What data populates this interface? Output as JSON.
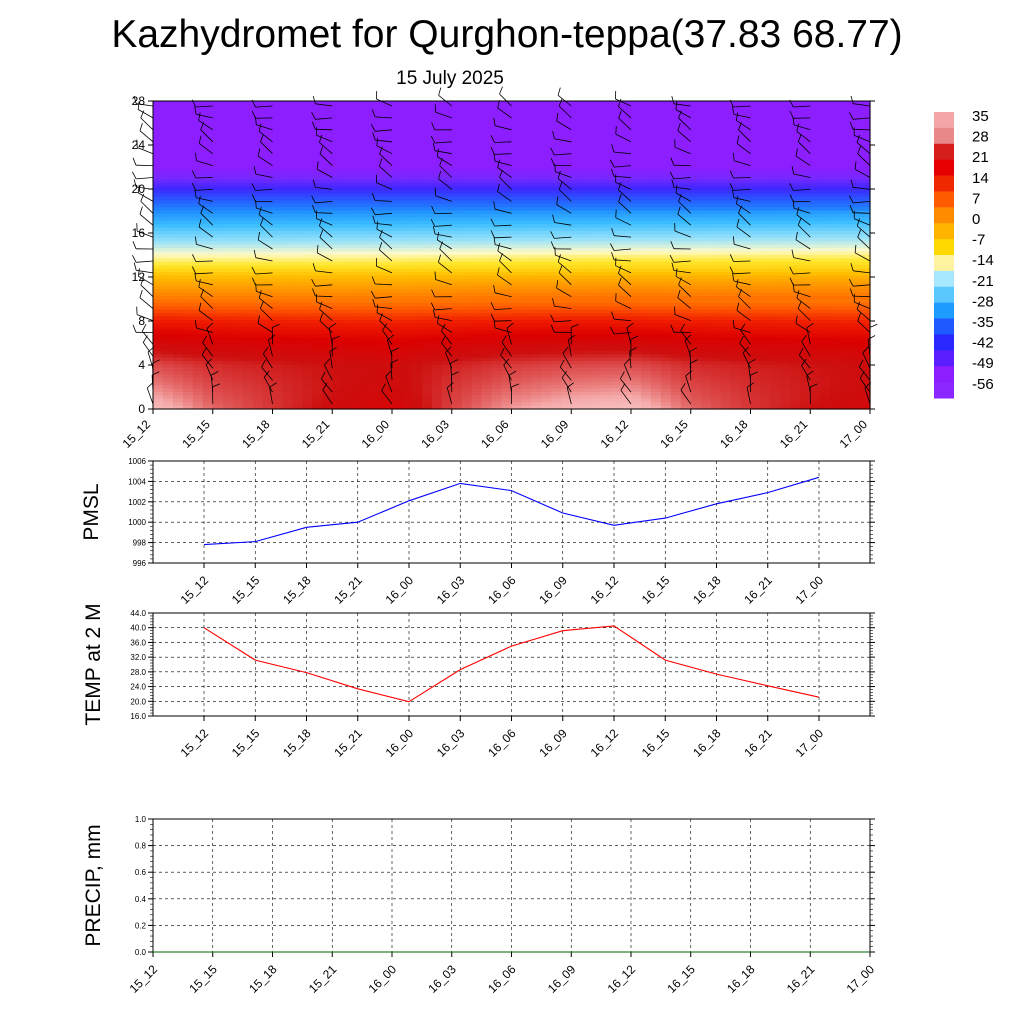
{
  "header": {
    "title": "Kazhydromet for Qurghon-teppa(37.83 68.77)",
    "subtitle": "15 July 2025"
  },
  "chart_data": [
    {
      "id": "cross-section",
      "type": "heatmap",
      "x_ticks": [
        "15_12",
        "15_15",
        "15_18",
        "15_21",
        "16_00",
        "16_03",
        "16_06",
        "16_09",
        "16_12",
        "16_15",
        "16_18",
        "16_21",
        "17_00"
      ],
      "y_ticks": [
        "0",
        "4",
        "8",
        "12",
        "16",
        "20",
        "24",
        "28"
      ],
      "ylim": [
        0,
        28
      ],
      "colorbar_labels": [
        "35",
        "28",
        "21",
        "14",
        "7",
        "0",
        "-7",
        "-14",
        "-21",
        "-28",
        "-35",
        "-42",
        "-49",
        "-56"
      ],
      "colorbar_colors": [
        "#f4a6a6",
        "#e88888",
        "#d61e1e",
        "#e60000",
        "#f02800",
        "#ff5a00",
        "#ff8c00",
        "#ffb400",
        "#ffd800",
        "#fff3a0",
        "#a8e8ff",
        "#5ac8ff",
        "#1e9bff",
        "#1e5aff",
        "#2828ff",
        "#5a1eff",
        "#8c1eff",
        "#8c28ff"
      ],
      "temperature_profile": [
        {
          "h": 0,
          "t": 30
        },
        {
          "h": 4,
          "t": 26
        },
        {
          "h": 6,
          "t": 20
        },
        {
          "h": 8,
          "t": 12
        },
        {
          "h": 10,
          "t": 2
        },
        {
          "h": 12,
          "t": -6
        },
        {
          "h": 13,
          "t": -12
        },
        {
          "h": 14,
          "t": -16
        },
        {
          "h": 16,
          "t": -26
        },
        {
          "h": 18,
          "t": -38
        },
        {
          "h": 20,
          "t": -50
        },
        {
          "h": 21,
          "t": -56
        },
        {
          "h": 22,
          "t": -60
        },
        {
          "h": 28,
          "t": -60
        }
      ],
      "surface_temps": [
        40,
        31,
        27,
        23,
        19.5,
        28,
        35,
        39,
        40.5,
        31,
        27,
        24,
        21
      ]
    },
    {
      "id": "pmsl",
      "type": "line",
      "ylabel": "PMSL",
      "x": [
        "15_12",
        "15_15",
        "15_18",
        "15_21",
        "16_00",
        "16_03",
        "16_06",
        "16_09",
        "16_12",
        "16_15",
        "16_18",
        "16_21",
        "17_00"
      ],
      "series": [
        {
          "values": [
            997.8,
            998.1,
            999.5,
            1000.0,
            1002.1,
            1003.8,
            1003.1,
            1000.9,
            999.7,
            1000.4,
            1001.8,
            1002.9,
            1004.4
          ],
          "color": "#0000ff"
        }
      ],
      "ylim": [
        996,
        1006
      ],
      "y_ticks": [
        "996",
        "998",
        "1000",
        "1002",
        "1004",
        "1006"
      ]
    },
    {
      "id": "temp",
      "type": "line",
      "ylabel": "TEMP at 2 M",
      "x": [
        "15_12",
        "15_15",
        "15_18",
        "15_21",
        "16_00",
        "16_03",
        "16_06",
        "16_09",
        "16_12",
        "16_15",
        "16_18",
        "16_21",
        "17_00"
      ],
      "series": [
        {
          "values": [
            40.0,
            31.2,
            27.8,
            23.4,
            19.9,
            28.6,
            35.0,
            39.2,
            40.5,
            31.2,
            27.4,
            24.2,
            21.1
          ],
          "color": "#ff0000"
        }
      ],
      "ylim": [
        16,
        44
      ],
      "y_ticks": [
        "16.0",
        "20.0",
        "24.0",
        "28.0",
        "32.0",
        "36.0",
        "40.0",
        "44.0"
      ]
    },
    {
      "id": "precip",
      "type": "line",
      "ylabel": "PRECIP, mm",
      "x": [
        "15_12",
        "15_15",
        "15_18",
        "15_21",
        "16_00",
        "16_03",
        "16_06",
        "16_09",
        "16_12",
        "16_15",
        "16_18",
        "16_21",
        "17_00"
      ],
      "series": [
        {
          "values": [
            0,
            0,
            0,
            0,
            0,
            0,
            0,
            0,
            0,
            0,
            0,
            0,
            0
          ],
          "color": "#006400"
        }
      ],
      "ylim": [
        0,
        1
      ],
      "y_ticks": [
        "0.0",
        "0.2",
        "0.4",
        "0.6",
        "0.8",
        "1.0"
      ]
    }
  ]
}
